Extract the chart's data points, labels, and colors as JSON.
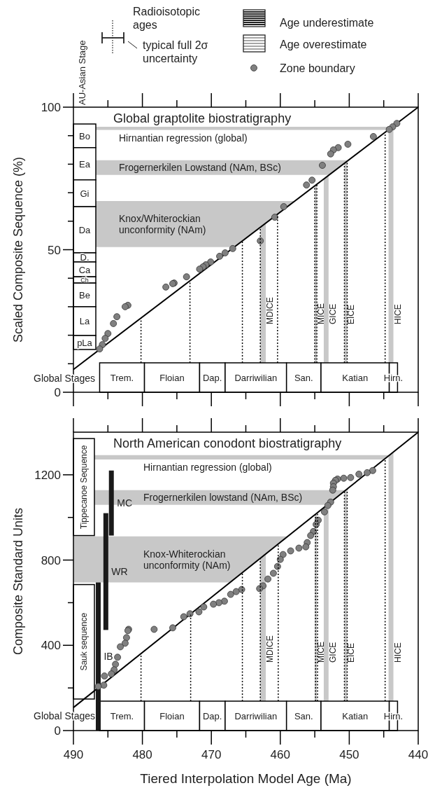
{
  "chart_data": [
    {
      "type": "scatter",
      "title": "Global graptolite biostratigraphy",
      "ylabel": "Scaled Composite Sequence (%)",
      "legend": "top",
      "tick_labels": "y",
      "annotations": [
        "Radioisotopic ages",
        "typical full 2σ uncertainty",
        "Age underestimate",
        "Age overestimate",
        "AU-Asian Stage",
        "Global Stages"
      ],
      "xlim": [
        490,
        440
      ],
      "ylim": [
        0,
        100
      ],
      "xticks": [
        490,
        {
          "value": 485,
          "label": null
        },
        480,
        {
          "value": 475,
          "label": null
        },
        470,
        {
          "value": 465,
          "label": null
        },
        460,
        {
          "value": 455,
          "label": null
        },
        450,
        {
          "value": 445,
          "label": null
        },
        440
      ],
      "yticks": [
        0,
        {
          "value": 10,
          "label": null
        },
        {
          "value": 20,
          "label": null
        },
        {
          "value": 30,
          "label": null
        },
        {
          "value": 40,
          "label": null
        },
        50,
        {
          "value": 60,
          "label": null
        },
        {
          "value": 70,
          "label": null
        },
        {
          "value": 80,
          "label": null
        },
        {
          "value": 90,
          "label": null
        },
        100
      ],
      "series": [
        {
          "type": "line",
          "color": "#000000",
          "x": [
            490,
            440
          ],
          "values": [
            8,
            100
          ]
        },
        {
          "name": "Zone boundary",
          "marker": "circle",
          "color": "#808080",
          "x": [
            443.1,
            443.7,
            444.2,
            446.5,
            450.2,
            451.6,
            452.3,
            452.7,
            453.9,
            455.4,
            456.2,
            459.5,
            460.8,
            462.9,
            466.9,
            468.0,
            468.8,
            470.1,
            470.8,
            471.2,
            471.7,
            473.6,
            475.4,
            475.6,
            476.6,
            482.1,
            482.5,
            483.7,
            484.2,
            485.0,
            485.4,
            485.8,
            486.2
          ],
          "values": [
            94.3,
            93.1,
            92.2,
            89.7,
            87.0,
            85.8,
            85.0,
            83.6,
            79.6,
            74.4,
            72.7,
            65.1,
            61.4,
            53.1,
            50.4,
            48.9,
            47.7,
            45.7,
            44.7,
            44.0,
            43.2,
            40.5,
            38.3,
            38.1,
            36.9,
            30.5,
            30.0,
            26.5,
            24.1,
            20.6,
            18.9,
            16.7,
            15.2
          ]
        }
      ],
      "bands": [
        {
          "axis": "y",
          "from": 92.0,
          "to": 93.1,
          "label": "Hirnantian regression (global)",
          "color": "#c8c8c8"
        },
        {
          "axis": "y",
          "from": 76.2,
          "to": 81.4,
          "label": "Frogernerkilen Lowstand (NAm, BSc)",
          "color": "#c8c8c8"
        },
        {
          "axis": "y",
          "from": 50.9,
          "to": 67.1,
          "label": "Knox/Whiterockian unconformity (NAm)",
          "color": "#c8c8c8"
        },
        {
          "axis": "x",
          "from": 462.9,
          "to": 462.1,
          "label": "MDICE",
          "color": "#c8c8c8"
        },
        {
          "axis": "x",
          "from": 455.0,
          "to": 454.7,
          "label": "MICE",
          "color": "#c8c8c8"
        },
        {
          "axis": "x",
          "from": 453.7,
          "to": 453.0,
          "label": "GICE",
          "color": "#c8c8c8"
        },
        {
          "axis": "x",
          "from": 450.7,
          "to": 450.3,
          "label": "EICE",
          "color": "#c8c8c8"
        },
        {
          "axis": "x",
          "from": 444.3,
          "to": 443.6,
          "label": "HICE",
          "color": "#c8c8c8"
        },
        {
          "axis": "x",
          "from": 486.2,
          "to": 479.7,
          "label": "Trem."
        },
        {
          "axis": "x",
          "from": 479.7,
          "to": 471.7,
          "label": "Floian"
        },
        {
          "axis": "x",
          "from": 471.7,
          "to": 468.0,
          "label": "Dap."
        },
        {
          "axis": "x",
          "from": 468.0,
          "to": 459.1,
          "label": "Darriwilian"
        },
        {
          "axis": "x",
          "from": 459.1,
          "to": 454.1,
          "label": "San."
        },
        {
          "axis": "x",
          "from": 454.1,
          "to": 444.2,
          "label": "Katian"
        },
        {
          "axis": "x",
          "from": 444.2,
          "to": 443.0,
          "label": "Hirn."
        },
        {
          "axis": "y",
          "from": 85.8,
          "to": 94.1,
          "label": "Bo"
        },
        {
          "axis": "y",
          "from": 74.5,
          "to": 85.8,
          "label": "Ea"
        },
        {
          "axis": "y",
          "from": 65.1,
          "to": 74.5,
          "label": "Gi"
        },
        {
          "axis": "y",
          "from": 48.9,
          "to": 65.1,
          "label": "Da"
        },
        {
          "axis": "y",
          "from": 45.7,
          "to": 48.9,
          "label": "D."
        },
        {
          "axis": "y",
          "from": 40.5,
          "to": 45.7,
          "label": "Ca"
        },
        {
          "axis": "y",
          "from": 38.3,
          "to": 40.5,
          "label": "Ch"
        },
        {
          "axis": "y",
          "from": 30.0,
          "to": 38.3,
          "label": "Be"
        },
        {
          "axis": "y",
          "from": 19.9,
          "to": 30.0,
          "label": "La"
        },
        {
          "axis": "y",
          "from": 15.0,
          "to": 19.9,
          "label": "pLa"
        }
      ],
      "ref_lines": [
        {
          "axis": "x",
          "value": 480.2,
          "line_style": "dotted"
        },
        {
          "axis": "x",
          "value": 473.1,
          "line_style": "dotted"
        },
        {
          "axis": "x",
          "value": 465.5,
          "line_style": "dotted"
        },
        {
          "axis": "x",
          "value": 462.9,
          "line_style": "dotted"
        },
        {
          "axis": "x",
          "value": 460.4,
          "line_style": "dotted"
        },
        {
          "axis": "x",
          "value": 455.0,
          "line_style": "dotted"
        },
        {
          "axis": "x",
          "value": 454.7,
          "line_style": "dotted"
        },
        {
          "axis": "x",
          "value": 450.7,
          "line_style": "dotted"
        },
        {
          "axis": "x",
          "value": 450.3,
          "line_style": "dotted"
        },
        {
          "axis": "x",
          "value": 444.8,
          "line_style": "dotted"
        }
      ]
    },
    {
      "type": "scatter",
      "title": "North American conodont biostratigraphy",
      "xlabel": "Tiered Interpolation Model Age (Ma)",
      "ylabel": "Composite Standard Units",
      "annotations": [
        "Global Stages"
      ],
      "xlim": [
        490,
        440
      ],
      "ylim": [
        0,
        1400
      ],
      "xticks": [
        490,
        {
          "value": 485,
          "label": null
        },
        480,
        {
          "value": 475,
          "label": null
        },
        470,
        {
          "value": 465,
          "label": null
        },
        460,
        {
          "value": 455,
          "label": null
        },
        450,
        {
          "value": 445,
          "label": null
        },
        440
      ],
      "yticks": [
        0,
        {
          "value": 200,
          "label": null
        },
        400,
        {
          "value": 600,
          "label": null
        },
        800,
        {
          "value": 1000,
          "label": null
        },
        1200
      ],
      "series": [
        {
          "type": "line",
          "color": "#000000",
          "x": [
            490,
            440
          ],
          "values": [
            108,
            1400
          ]
        },
        {
          "type": "bar",
          "name": "IB",
          "color": "#1a1a1a",
          "x": [
            486.4
          ],
          "base": [
            0
          ],
          "values": [
            695
          ]
        },
        {
          "type": "bar",
          "name": "WR",
          "color": "#1a1a1a",
          "x": [
            485.3
          ],
          "base": [
            472
          ],
          "values": [
            548
          ]
        },
        {
          "type": "bar",
          "name": "MC",
          "color": "#1a1a1a",
          "x": [
            484.5
          ],
          "base": [
            915
          ],
          "values": [
            305
          ]
        },
        {
          "marker": "circle",
          "color": "#808080",
          "x": [
            446.6,
            447.4,
            448.6,
            449.8,
            450.8,
            451.7,
            452.0,
            452.3,
            452.3,
            452.4,
            452.7,
            453.1,
            453.6,
            454.5,
            454.8,
            455.2,
            455.6,
            456.1,
            456.3,
            457.3,
            458.5,
            459.6,
            460.0,
            460.4,
            461.0,
            461.8,
            462.5,
            463.0,
            465.6,
            466.4,
            467.2,
            468.1,
            468.9,
            469.7,
            471.1,
            471.8,
            473.1,
            474.0,
            475.6,
            478.3,
            482.0,
            482.1,
            482.3,
            482.5,
            483.2,
            483.6,
            483.9,
            484.1,
            484.5,
            485.5,
            485.6,
            486.4
          ],
          "values": [
            1220,
            1210,
            1203,
            1187,
            1184,
            1180,
            1174,
            1161,
            1144,
            1128,
            1072,
            1056,
            1026,
            987,
            967,
            934,
            915,
            882,
            862,
            856,
            843,
            826,
            803,
            770,
            738,
            711,
            679,
            666,
            662,
            652,
            639,
            607,
            600,
            593,
            580,
            557,
            548,
            534,
            482,
            475,
            475,
            469,
            436,
            410,
            393,
            344,
            311,
            285,
            266,
            256,
            213,
            207
          ]
        }
      ],
      "bands": [
        {
          "axis": "y",
          "from": 1272,
          "to": 1292,
          "label": "Hirnantian regression (global)",
          "color": "#c8c8c8"
        },
        {
          "axis": "y",
          "from": 1059,
          "to": 1128,
          "label": "Frogernerkilen lowstand (NAm, BSc)",
          "color": "#c8c8c8"
        },
        {
          "axis": "y",
          "from": 695,
          "to": 911,
          "label": "Knox-Whiterockian unconformity (NAm)",
          "color": "#c8c8c8"
        },
        {
          "axis": "x",
          "from": 462.9,
          "to": 462.1,
          "label": "MDICE",
          "color": "#c8c8c8"
        },
        {
          "axis": "x",
          "from": 455.0,
          "to": 454.7,
          "label": "MICE",
          "color": "#c8c8c8"
        },
        {
          "axis": "x",
          "from": 453.7,
          "to": 453.0,
          "label": "GICE",
          "color": "#c8c8c8"
        },
        {
          "axis": "x",
          "from": 450.7,
          "to": 450.3,
          "label": "EICE",
          "color": "#c8c8c8"
        },
        {
          "axis": "x",
          "from": 444.3,
          "to": 443.6,
          "label": "HICE",
          "color": "#c8c8c8"
        },
        {
          "axis": "x",
          "from": 486.2,
          "to": 479.7,
          "label": "Trem."
        },
        {
          "axis": "x",
          "from": 479.7,
          "to": 471.7,
          "label": "Floian"
        },
        {
          "axis": "x",
          "from": 471.7,
          "to": 468.0,
          "label": "Dap."
        },
        {
          "axis": "x",
          "from": 468.0,
          "to": 459.1,
          "label": "Darriwilian"
        },
        {
          "axis": "x",
          "from": 459.1,
          "to": 454.1,
          "label": "San."
        },
        {
          "axis": "x",
          "from": 454.1,
          "to": 444.2,
          "label": "Katian"
        },
        {
          "axis": "x",
          "from": 444.2,
          "to": 443.0,
          "label": "Hirn."
        },
        {
          "axis": "y",
          "from": 915,
          "to": 1370,
          "label": "Tippecanoe Sequence"
        },
        {
          "axis": "y",
          "from": 148,
          "to": 685,
          "label": "Sauk sequence"
        }
      ],
      "ref_lines": [
        {
          "axis": "x",
          "value": 480.2,
          "line_style": "dotted"
        },
        {
          "axis": "x",
          "value": 473.0,
          "line_style": "dotted"
        },
        {
          "axis": "x",
          "value": 465.5,
          "line_style": "dotted"
        },
        {
          "axis": "x",
          "value": 462.9,
          "line_style": "dotted"
        },
        {
          "axis": "x",
          "value": 460.3,
          "line_style": "dotted"
        },
        {
          "axis": "x",
          "value": 454.9,
          "line_style": "dotted"
        },
        {
          "axis": "x",
          "value": 454.6,
          "line_style": "dotted"
        },
        {
          "axis": "x",
          "value": 450.7,
          "line_style": "dotted"
        },
        {
          "axis": "x",
          "value": 450.3,
          "line_style": "dotted"
        },
        {
          "axis": "x",
          "value": 444.8,
          "line_style": "dotted"
        }
      ]
    }
  ]
}
